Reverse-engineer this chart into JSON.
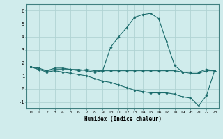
{
  "xlabel": "Humidex (Indice chaleur)",
  "x": [
    0,
    1,
    2,
    3,
    4,
    5,
    6,
    7,
    8,
    9,
    10,
    11,
    12,
    13,
    14,
    15,
    16,
    17,
    18,
    19,
    20,
    21,
    22,
    23
  ],
  "line1": [
    1.7,
    1.6,
    1.4,
    1.6,
    1.6,
    1.5,
    1.5,
    1.4,
    1.3,
    1.4,
    3.2,
    4.0,
    4.7,
    5.5,
    5.7,
    5.8,
    5.4,
    3.6,
    1.8,
    1.3,
    1.3,
    1.3,
    1.5,
    1.4
  ],
  "line2": [
    1.7,
    1.5,
    1.4,
    1.5,
    1.5,
    1.5,
    1.4,
    1.5,
    1.4,
    1.4,
    1.4,
    1.4,
    1.4,
    1.4,
    1.4,
    1.4,
    1.4,
    1.4,
    1.4,
    1.3,
    1.2,
    1.2,
    1.4,
    1.4
  ],
  "line3": [
    1.7,
    1.5,
    1.3,
    1.4,
    1.3,
    1.2,
    1.1,
    1.0,
    0.8,
    0.6,
    0.5,
    0.3,
    0.1,
    -0.1,
    -0.2,
    -0.3,
    -0.3,
    -0.3,
    -0.4,
    -0.6,
    -0.7,
    -1.3,
    -0.5,
    1.4
  ],
  "line_color": "#1a6b6b",
  "bg_color": "#d0ecec",
  "grid_color": "#b0d4d4",
  "ylim": [
    -1.5,
    6.5
  ],
  "xlim": [
    -0.5,
    23.5
  ],
  "yticks": [
    -1,
    0,
    1,
    2,
    3,
    4,
    5,
    6
  ],
  "xticks": [
    0,
    1,
    2,
    3,
    4,
    5,
    6,
    7,
    8,
    9,
    10,
    11,
    12,
    13,
    14,
    15,
    16,
    17,
    18,
    19,
    20,
    21,
    22,
    23
  ]
}
